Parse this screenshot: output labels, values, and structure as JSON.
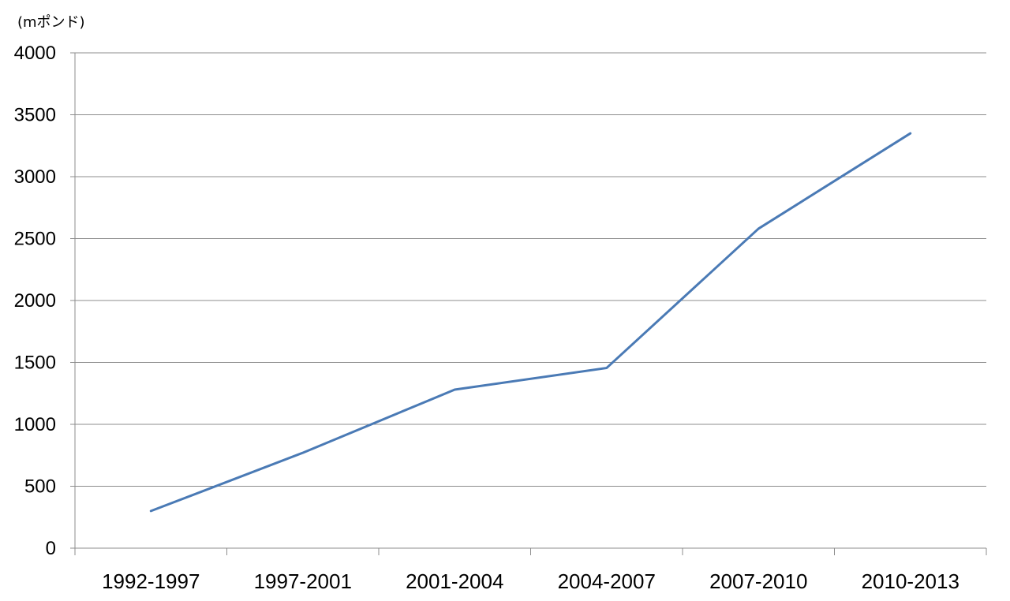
{
  "chart_data": {
    "type": "line",
    "unit_label": "(mポンド)",
    "categories": [
      "1992-1997",
      "1997-2001",
      "2001-2004",
      "2004-2007",
      "2007-2010",
      "2010-2013"
    ],
    "series": [
      {
        "values": [
          300,
          770,
          1280,
          1455,
          2580,
          3350
        ],
        "color": "#4a7ab5"
      }
    ],
    "ylim": [
      0,
      4000
    ],
    "yticks": [
      0,
      500,
      1000,
      1500,
      2000,
      2500,
      3000,
      3500,
      4000
    ],
    "grid": true,
    "legend": "none"
  }
}
